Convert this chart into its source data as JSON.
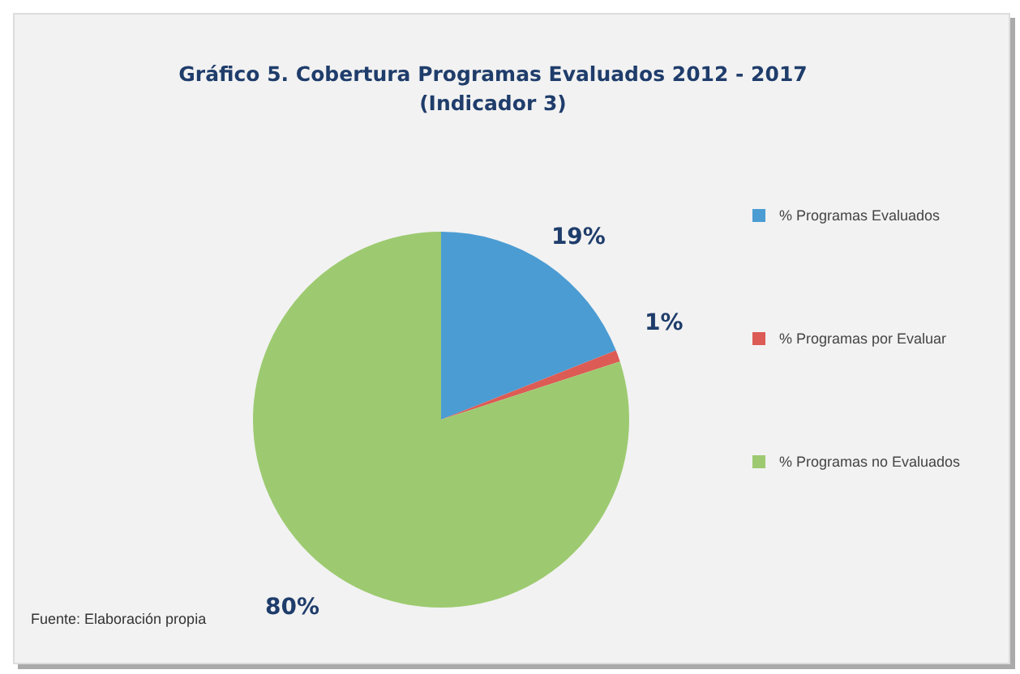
{
  "chart_data": {
    "type": "pie",
    "title": "Gráfico 5. Cobertura Programas Evaluados 2012 - 2017",
    "subtitle": "(Indicador 3)",
    "categories": [
      "% Programas Evaluados",
      "% Programas por Evaluar",
      "% Programas no Evaluados"
    ],
    "values": [
      19,
      1,
      80
    ],
    "colors": [
      "#4b9cd3",
      "#dc5b55",
      "#9dca70"
    ],
    "value_labels": [
      "19%",
      "1%",
      "80%"
    ],
    "legend": "right",
    "annotations": [
      "Fuente: Elaboración propia"
    ]
  }
}
